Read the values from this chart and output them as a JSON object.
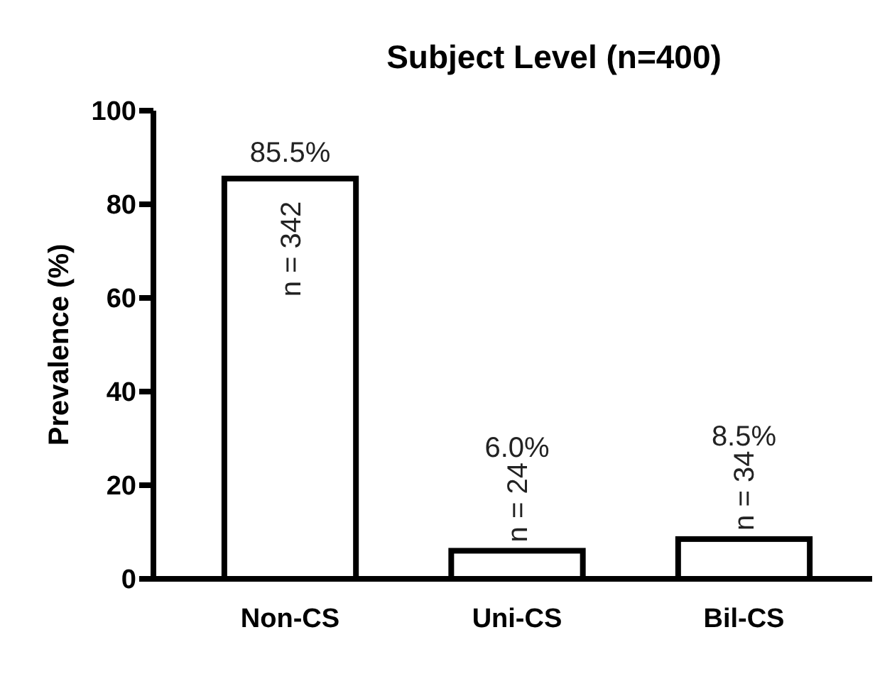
{
  "chart_data": {
    "type": "bar",
    "title": "Subject Level (n=400)",
    "ylabel": "Prevalence (%)",
    "categories": [
      "Non-CS",
      "Uni-CS",
      "Bil-CS"
    ],
    "values": [
      85.5,
      6.0,
      8.5
    ],
    "value_labels": [
      "85.5%",
      "6.0%",
      "8.5%"
    ],
    "color": "#ffffff",
    "ylim": [
      0,
      100
    ],
    "yticks": [
      0,
      20,
      40,
      60,
      80,
      100
    ],
    "grid": false,
    "annotations": [
      "n = 342",
      "n = 24",
      "n = 34"
    ]
  }
}
